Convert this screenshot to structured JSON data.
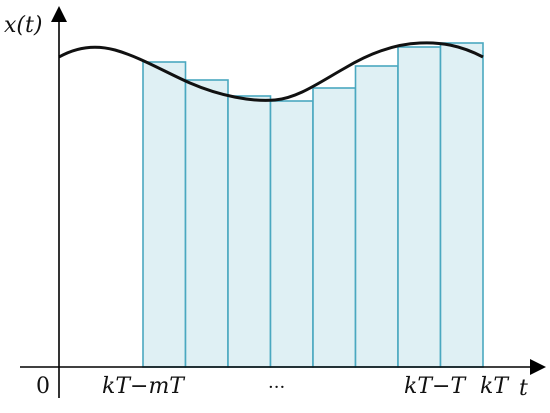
{
  "diagram": {
    "y_axis_label": "x(t)",
    "x_axis_label": "t",
    "origin_label": "0",
    "tick_labels": {
      "start": "kT−mT",
      "ellipsis": "···",
      "prev": "kT−T",
      "current": "kT"
    },
    "colors": {
      "bar_fill": "#dff0f4",
      "bar_stroke": "#4aa8c0",
      "curve": "#111111",
      "axis": "#000000"
    }
  }
}
